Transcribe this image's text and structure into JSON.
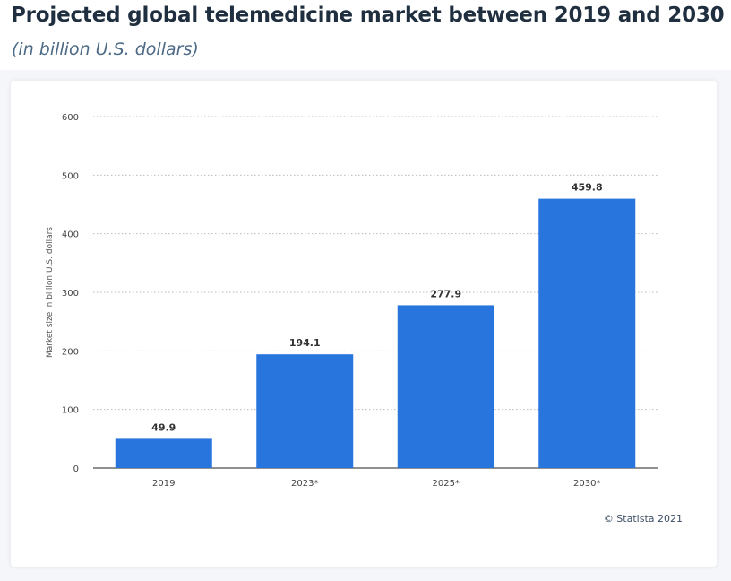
{
  "title": "Projected global telemedicine market between 2019 and 2030",
  "subtitle": "(in billion U.S. dollars)",
  "copyright": "© Statista 2021",
  "chart_data": {
    "type": "bar",
    "categories": [
      "2019",
      "2023*",
      "2025*",
      "2030*"
    ],
    "values": [
      49.9,
      194.1,
      277.9,
      459.8
    ],
    "value_labels": [
      "49.9",
      "194.1",
      "277.9",
      "459.8"
    ],
    "ylabel": "Market size in billion U.S. dollars",
    "xlabel": "",
    "ylim": [
      0,
      600
    ],
    "yticks": [
      0,
      100,
      200,
      300,
      400,
      500,
      600
    ],
    "grid": true,
    "bar_color": "#2876dd"
  }
}
